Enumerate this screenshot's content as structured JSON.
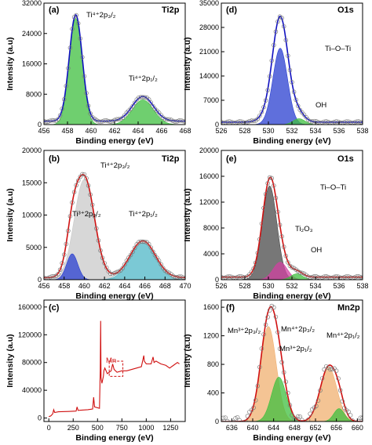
{
  "figure": "xps-panels",
  "colors": {
    "envelope": "#000000",
    "fit_blue": "#1010c0",
    "fit_red": "#d01010",
    "points": "#7a7a7a",
    "ti4_green": "#3fbf3f",
    "ti4_cyan": "#4fb7c7",
    "ti3_blue": "#2a3fd0",
    "grey_fill": "#c9c9c9",
    "dark_fill": "#4a4a4a",
    "magenta": "#d040a0",
    "mn_orange": "#f0b070",
    "mn_green": "#3fbf3f"
  },
  "chart_data": [
    {
      "type": "line",
      "panel": "(a)",
      "title": "Ti2p",
      "xlabel": "Binding energy (eV)",
      "ylabel": "Intensity (a.u)",
      "xlim": [
        456,
        468
      ],
      "ylim": [
        0,
        32000
      ],
      "xticks": [
        "456",
        "458",
        "460",
        "462",
        "464",
        "466",
        "468"
      ],
      "yticks": [
        "0",
        "8000",
        "16000",
        "24000",
        "32000"
      ],
      "annotations": [
        "Ti⁴⁺2p₃/₂",
        "Ti⁴⁺2p₁/₂"
      ],
      "peaks": [
        {
          "center": 458.7,
          "height": 28000,
          "width": 0.55,
          "fill": "ti4_green"
        },
        {
          "center": 464.4,
          "height": 6500,
          "width": 0.9,
          "fill": "ti4_green"
        }
      ],
      "baseline": 900,
      "fit": "fit_blue"
    },
    {
      "type": "line",
      "panel": "(b)",
      "title": "Ti2p",
      "xlabel": "Binding energy (eV)",
      "ylabel": "Intensity (a.u)",
      "xlim": [
        456,
        470
      ],
      "ylim": [
        0,
        20000
      ],
      "xticks": [
        "456",
        "458",
        "460",
        "462",
        "464",
        "466",
        "468",
        "470"
      ],
      "yticks": [
        "0",
        "5000",
        "10000",
        "15000",
        "20000"
      ],
      "annotations": [
        "Ti⁴⁺2p₃/₂",
        "Ti³⁺2p₃/₂",
        "Ti⁴⁺2p₁/₂"
      ],
      "peaks": [
        {
          "center": 460.0,
          "height": 15500,
          "width": 1.0,
          "fill": "grey_fill"
        },
        {
          "center": 458.8,
          "height": 4000,
          "width": 0.55,
          "fill": "ti3_blue"
        },
        {
          "center": 465.8,
          "height": 5700,
          "width": 1.25,
          "fill": "ti4_cyan"
        }
      ],
      "baseline": 300,
      "fit": "fit_red"
    },
    {
      "type": "line",
      "panel": "(c)",
      "title": "",
      "xlabel": "Binding energy (eV)",
      "ylabel": "Intensity (a.u)",
      "xlim": [
        -50,
        1400
      ],
      "ylim": [
        -5000,
        170000
      ],
      "xticks": [
        "0",
        "250",
        "500",
        "750",
        "1000",
        "1250"
      ],
      "yticks": [
        "0",
        "40000",
        "80000",
        "120000",
        "160000"
      ],
      "annotations": [
        "Mn"
      ],
      "survey_points": [
        [
          0,
          2000
        ],
        [
          20,
          3000
        ],
        [
          40,
          6000
        ],
        [
          50,
          12000
        ],
        [
          60,
          8000
        ],
        [
          100,
          9000
        ],
        [
          200,
          9500
        ],
        [
          280,
          10000
        ],
        [
          290,
          16000
        ],
        [
          300,
          11000
        ],
        [
          400,
          12000
        ],
        [
          450,
          13000
        ],
        [
          460,
          30000
        ],
        [
          470,
          16000
        ],
        [
          520,
          14000
        ],
        [
          528,
          70000
        ],
        [
          532,
          140000
        ],
        [
          536,
          58000
        ],
        [
          545,
          50000
        ],
        [
          560,
          60000
        ],
        [
          565,
          68000
        ],
        [
          575,
          72000
        ],
        [
          600,
          64000
        ],
        [
          640,
          68000
        ],
        [
          655,
          78000
        ],
        [
          670,
          70000
        ],
        [
          700,
          66000
        ],
        [
          750,
          68000
        ],
        [
          800,
          68000
        ],
        [
          850,
          70000
        ],
        [
          900,
          72000
        ],
        [
          950,
          74000
        ],
        [
          975,
          90000
        ],
        [
          980,
          82000
        ],
        [
          1000,
          78000
        ],
        [
          1050,
          78000
        ],
        [
          1070,
          88000
        ],
        [
          1080,
          80000
        ],
        [
          1100,
          82000
        ],
        [
          1150,
          78000
        ],
        [
          1200,
          76000
        ],
        [
          1240,
          72000
        ],
        [
          1280,
          76000
        ],
        [
          1320,
          80000
        ],
        [
          1340,
          78000
        ]
      ],
      "fit": "fit_red"
    },
    {
      "type": "line",
      "panel": "(d)",
      "title": "O1s",
      "xlabel": "Binding energy (eV)",
      "ylabel": "Intensity (a.u)",
      "xlim": [
        526,
        538
      ],
      "ylim": [
        0,
        35000
      ],
      "xticks": [
        "526",
        "528",
        "530",
        "532",
        "534",
        "536",
        "538"
      ],
      "yticks": [
        "0",
        "7000",
        "14000",
        "21000",
        "28000",
        "35000"
      ],
      "annotations": [
        "Ti–O–Ti",
        "OH"
      ],
      "peaks": [
        {
          "center": 531.0,
          "height": 22000,
          "width": 0.62,
          "fill": "ti3_blue"
        },
        {
          "center": 532.6,
          "height": 1700,
          "width": 0.5,
          "fill": "mn_green"
        }
      ],
      "extra_envelope_height": 8500,
      "baseline": 700,
      "fit": "fit_blue"
    },
    {
      "type": "line",
      "panel": "(e)",
      "title": "O1s",
      "xlabel": "Binding energy (eV)",
      "ylabel": "Intensity (a.u)",
      "xlim": [
        526,
        538
      ],
      "ylim": [
        0,
        20000
      ],
      "xticks": [
        "526",
        "528",
        "530",
        "532",
        "534",
        "536",
        "538"
      ],
      "yticks": [
        "0",
        "4000",
        "8000",
        "12000",
        "16000",
        "20000"
      ],
      "annotations": [
        "Ti–O–Ti",
        "Ti₂O₃",
        "OH"
      ],
      "peaks": [
        {
          "center": 530.1,
          "height": 14500,
          "width": 0.62,
          "fill": "dark_fill"
        },
        {
          "center": 531.0,
          "height": 2700,
          "width": 0.6,
          "fill": "magenta"
        },
        {
          "center": 532.4,
          "height": 900,
          "width": 0.5,
          "fill": "mn_green"
        }
      ],
      "baseline": 400,
      "fit": "fit_red"
    },
    {
      "type": "line",
      "panel": "(f)",
      "title": "Mn2p",
      "xlabel": "Binding energy (eV)",
      "ylabel": "Intensity (a.u)",
      "xlim": [
        634,
        661
      ],
      "ylim": [
        0,
        1700
      ],
      "xticks": [
        "636",
        "640",
        "644",
        "648",
        "652",
        "656",
        "660"
      ],
      "yticks": [
        "0",
        "400",
        "800",
        "1200",
        "1600"
      ],
      "annotations": [
        "Mn³⁺2p₃/₂",
        "Mn⁴⁺2p₃/₂",
        "Mn³⁺2p₁/₂",
        "Mn⁴⁺2p₁/₂"
      ],
      "peaks": [
        {
          "center": 643.0,
          "height": 1330,
          "width": 1.5,
          "fill": "mn_orange"
        },
        {
          "center": 645.0,
          "height": 620,
          "width": 1.4,
          "fill": "mn_green"
        },
        {
          "center": 654.5,
          "height": 760,
          "width": 1.6,
          "fill": "mn_orange"
        },
        {
          "center": 656.5,
          "height": 180,
          "width": 1.0,
          "fill": "mn_green"
        }
      ],
      "baseline": 0,
      "fit": "fit_red"
    }
  ]
}
